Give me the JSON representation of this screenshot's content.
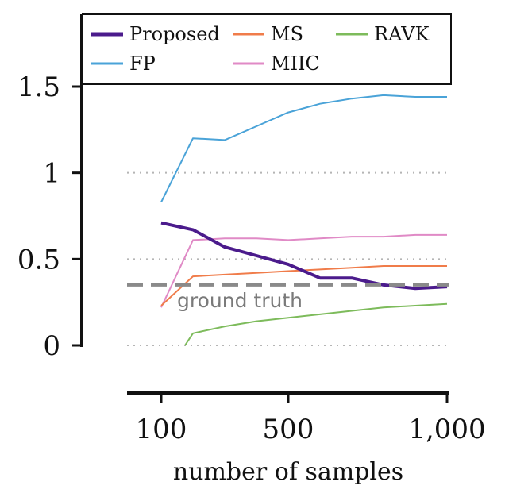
{
  "chart_data": {
    "type": "line",
    "xlabel": "number of samples",
    "ylabel": "",
    "xlim": [
      100,
      1000
    ],
    "ylim": [
      0,
      1.5
    ],
    "x_ticks": [
      100,
      500,
      1000
    ],
    "x_tick_labels": [
      "100",
      "500",
      "1,000"
    ],
    "y_ticks": [
      0,
      0.5,
      1,
      1.5
    ],
    "y_tick_labels": [
      "0",
      "0.5",
      "1",
      "1.5"
    ],
    "grid": "dotted horizontal at 0, 0.5, 1",
    "legend_position": "top",
    "series": [
      {
        "name": "Proposed",
        "color": "#4b1b8c",
        "width": 4,
        "x": [
          100,
          200,
          300,
          400,
          500,
          600,
          700,
          800,
          900,
          1000
        ],
        "y": [
          0.71,
          0.67,
          0.57,
          0.52,
          0.47,
          0.39,
          0.39,
          0.35,
          0.33,
          0.34
        ]
      },
      {
        "name": "MS",
        "color": "#f07c4a",
        "width": 2,
        "x": [
          100,
          200,
          300,
          400,
          500,
          600,
          700,
          800,
          900,
          1000
        ],
        "y": [
          0.23,
          0.4,
          0.41,
          0.42,
          0.43,
          0.44,
          0.45,
          0.46,
          0.46,
          0.46
        ]
      },
      {
        "name": "RAVK",
        "color": "#7dbb5b",
        "width": 2,
        "x": [
          175,
          200,
          300,
          400,
          500,
          600,
          700,
          800,
          900,
          1000
        ],
        "y": [
          0.0,
          0.07,
          0.11,
          0.14,
          0.16,
          0.18,
          0.2,
          0.22,
          0.23,
          0.24
        ]
      },
      {
        "name": "FP",
        "color": "#4aa3d8",
        "width": 2,
        "x": [
          100,
          200,
          300,
          400,
          500,
          600,
          700,
          800,
          900,
          1000
        ],
        "y": [
          0.83,
          1.2,
          1.19,
          1.27,
          1.35,
          1.4,
          1.43,
          1.45,
          1.44,
          1.44
        ]
      },
      {
        "name": "MIIC",
        "color": "#e08ac6",
        "width": 2,
        "x": [
          100,
          200,
          300,
          400,
          500,
          600,
          700,
          800,
          900,
          1000
        ],
        "y": [
          0.22,
          0.61,
          0.62,
          0.62,
          0.61,
          0.62,
          0.63,
          0.63,
          0.64,
          0.64
        ]
      }
    ],
    "reference_line": {
      "y": 0.35,
      "label": "ground truth",
      "color": "#8a8a8a",
      "dash": "dashed"
    }
  }
}
